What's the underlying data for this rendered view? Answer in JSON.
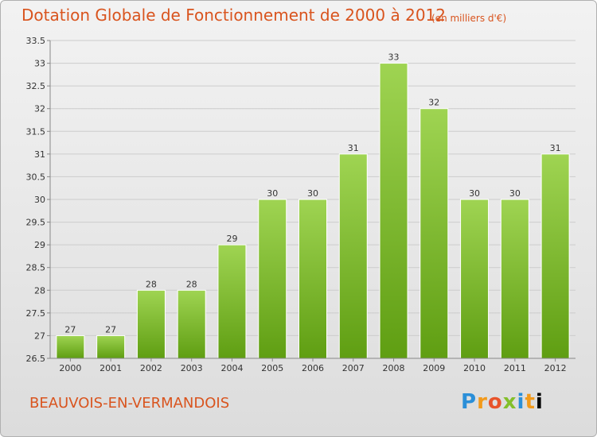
{
  "header": {
    "title": "Dotation Globale de Fonctionnement de 2000 à 2012",
    "unit": "(en milliers d'€)"
  },
  "footer": {
    "commune": "BEAUVOIS-EN-VERMANDOIS",
    "logo_letters": [
      "P",
      "r",
      "o",
      "x",
      "i",
      "t",
      "i"
    ]
  },
  "colors": {
    "title": "#d9541e",
    "bar_top": "#9fd452",
    "bar_bottom": "#5f9e12",
    "grid": "#cccccc"
  },
  "chart_data": {
    "type": "bar",
    "title": "Dotation Globale de Fonctionnement de 2000 à 2012",
    "xlabel": "",
    "ylabel": "",
    "categories": [
      "2000",
      "2001",
      "2002",
      "2003",
      "2004",
      "2005",
      "2006",
      "2007",
      "2008",
      "2009",
      "2010",
      "2011",
      "2012"
    ],
    "values": [
      27,
      27,
      28,
      28,
      29,
      30,
      30,
      31,
      33,
      32,
      30,
      30,
      31
    ],
    "ylim": [
      26.5,
      33.5
    ],
    "yticks": [
      "26.5",
      "27",
      "27.5",
      "28",
      "28.5",
      "29",
      "29.5",
      "30",
      "30.5",
      "31",
      "31.5",
      "32",
      "32.5",
      "33",
      "33.5"
    ],
    "grid": true
  }
}
